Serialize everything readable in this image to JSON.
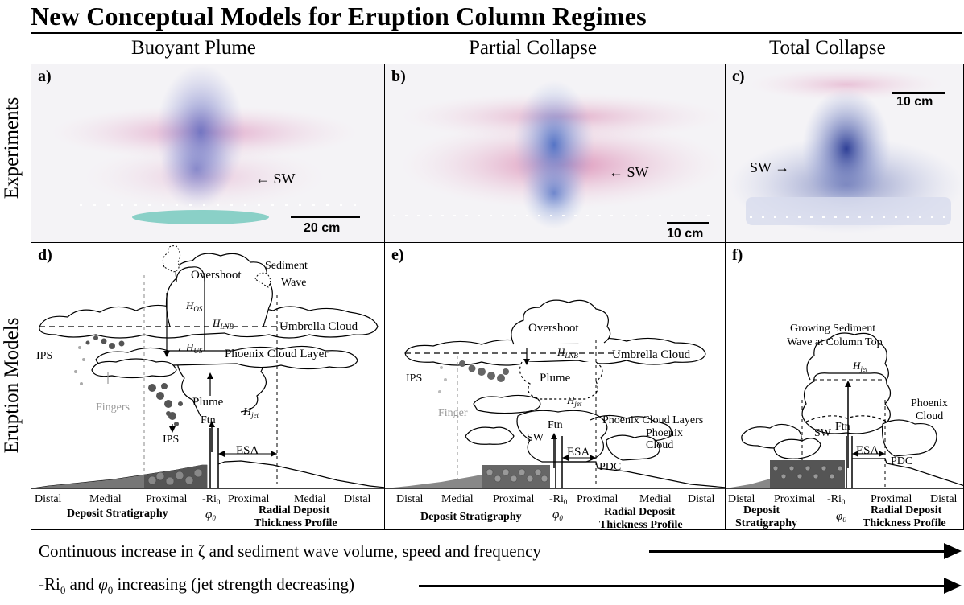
{
  "title": "New Conceptual Models for Eruption Column Regimes",
  "columns": [
    "Buoyant Plume",
    "Partial Collapse",
    "Total Collapse"
  ],
  "rows": [
    "Experiments",
    "Eruption Models"
  ],
  "panels": {
    "a": {
      "label": "a)",
      "scale": "20 cm",
      "sw": "SW"
    },
    "b": {
      "label": "b)",
      "scale": "10 cm",
      "sw": "SW"
    },
    "c": {
      "label": "c)",
      "scale": "10 cm",
      "sw": "SW"
    },
    "d": {
      "label": "d)",
      "overshoot": "Overshoot",
      "sediment": "Sediment",
      "wave": "Wave",
      "hos": "H",
      "hos_sub": "OS",
      "hlnb": "H",
      "hlnb_sub": "LNB",
      "hus": "H",
      "hus_sub": "US",
      "umbrella": "Umbrella Cloud",
      "phoenix": "Phoenix Cloud Layer",
      "ips_top": "IPS",
      "fingers": "Fingers",
      "plume": "Plume",
      "ftn": "Ftn",
      "hjet": "H",
      "hjet_sub": "jet",
      "ips_bot": "IPS",
      "esa": "ESA",
      "ax": [
        "Distal",
        "Medial",
        "Proximal",
        "-Ri",
        "Proximal",
        "Medial",
        "Distal"
      ],
      "ri_sub": "0",
      "phi": "φ",
      "phi_sub": "0",
      "strat": "Deposit Stratigraphy",
      "radial1": "Radial Deposit",
      "radial2": "Thickness Profile"
    },
    "e": {
      "label": "e)",
      "overshoot": "Overshoot",
      "hlnb": "H",
      "hlnb_sub": "LNB",
      "umbrella": "Umbrella Cloud",
      "ips": "IPS",
      "plume": "Plume",
      "finger": "Finger",
      "hjet": "H",
      "hjet_sub": "jet",
      "phoenix": "Phoenix Cloud Layers",
      "phoenix2a": "Phoenix",
      "phoenix2b": "Cloud",
      "ftn": "Ftn",
      "sw": "SW",
      "esa": "ESA",
      "pdc": "PDC",
      "ax": [
        "Distal",
        "Medial",
        "Proximal",
        "-Ri",
        "Proximal",
        "Medial",
        "Distal"
      ],
      "ri_sub": "0",
      "phi": "φ",
      "phi_sub": "0",
      "strat": "Deposit Stratigraphy",
      "radial1": "Radial Deposit",
      "radial2": "Thickness Profile"
    },
    "f": {
      "label": "f)",
      "growing1": "Growing Sediment",
      "growing2": "Wave at Column Top",
      "hjet": "H",
      "hjet_sub": "jet",
      "phoenix1": "Phoenix",
      "phoenix2": "Cloud",
      "ftn": "Ftn",
      "sw": "SW",
      "esa": "ESA",
      "pdc": "PDC",
      "ax": [
        "Distal",
        "Proximal",
        "-Ri",
        "Proximal",
        "Distal"
      ],
      "ri_sub": "0",
      "phi": "φ",
      "phi_sub": "0",
      "strat1": "Deposit",
      "strat2": "Stratigraphy",
      "radial1": "Radial Deposit",
      "radial2": "Thickness Profile"
    }
  },
  "bottom": {
    "line1": "Continuous increase in ζ and sediment wave volume, speed and frequency",
    "line2_a": "-Ri",
    "line2_sub1": "0",
    "line2_b": " and ",
    "line2_phi": "φ",
    "line2_sub2": "0",
    "line2_c": " increasing (jet strength decreasing)"
  }
}
